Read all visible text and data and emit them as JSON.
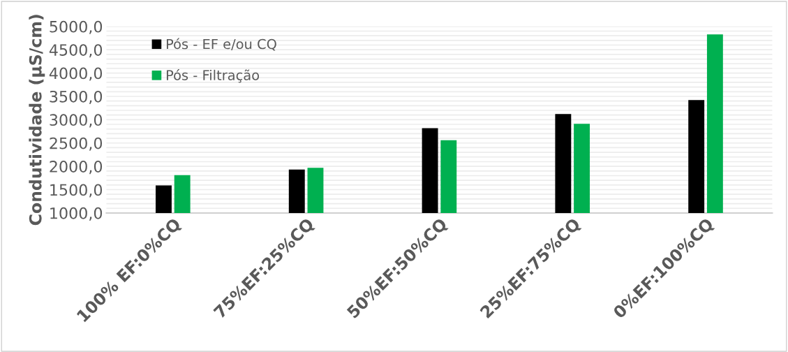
{
  "chart_data": {
    "type": "bar",
    "ylabel": "Condutividade (µS/cm)",
    "categories": [
      "100% EF:0%CQ",
      "75%EF:25%CQ",
      "50%EF:50%CQ",
      "25%EF:75%CQ",
      "0%EF:100%CQ"
    ],
    "series": [
      {
        "name": "Pós - EF e/ou CQ",
        "color": "#000000",
        "values": [
          1590,
          1930,
          2820,
          3120,
          3420
        ]
      },
      {
        "name": "Pós - Filtração",
        "color": "#00b050",
        "values": [
          1810,
          1970,
          2560,
          2910,
          4830
        ]
      }
    ],
    "ylim": [
      1000,
      5000
    ],
    "yticks": [
      {
        "value": 1000,
        "label": "1000,0"
      },
      {
        "value": 1100,
        "label": null
      },
      {
        "value": 1200,
        "label": null
      },
      {
        "value": 1300,
        "label": null
      },
      {
        "value": 1400,
        "label": null
      },
      {
        "value": 1500,
        "label": "1500,0"
      },
      {
        "value": 1600,
        "label": null
      },
      {
        "value": 1700,
        "label": null
      },
      {
        "value": 1800,
        "label": null
      },
      {
        "value": 1900,
        "label": null
      },
      {
        "value": 2000,
        "label": "2000,0"
      },
      {
        "value": 2100,
        "label": null
      },
      {
        "value": 2200,
        "label": null
      },
      {
        "value": 2300,
        "label": null
      },
      {
        "value": 2400,
        "label": null
      },
      {
        "value": 2500,
        "label": "2500,0"
      },
      {
        "value": 2600,
        "label": null
      },
      {
        "value": 2700,
        "label": null
      },
      {
        "value": 2800,
        "label": null
      },
      {
        "value": 2900,
        "label": null
      },
      {
        "value": 3000,
        "label": "3000,0"
      },
      {
        "value": 3100,
        "label": null
      },
      {
        "value": 3200,
        "label": null
      },
      {
        "value": 3300,
        "label": null
      },
      {
        "value": 3400,
        "label": null
      },
      {
        "value": 3500,
        "label": "3500,0"
      },
      {
        "value": 3600,
        "label": null
      },
      {
        "value": 3700,
        "label": null
      },
      {
        "value": 3800,
        "label": null
      },
      {
        "value": 3900,
        "label": null
      },
      {
        "value": 4000,
        "label": "4000,0"
      },
      {
        "value": 4100,
        "label": null
      },
      {
        "value": 4200,
        "label": null
      },
      {
        "value": 4300,
        "label": null
      },
      {
        "value": 4400,
        "label": null
      },
      {
        "value": 4500,
        "label": "4500,0"
      },
      {
        "value": 4600,
        "label": null
      },
      {
        "value": 4700,
        "label": null
      },
      {
        "value": 4800,
        "label": null
      },
      {
        "value": 4900,
        "label": null
      },
      {
        "value": 5000,
        "label": "5000,0"
      }
    ],
    "grid": "y",
    "legend": "top left"
  }
}
